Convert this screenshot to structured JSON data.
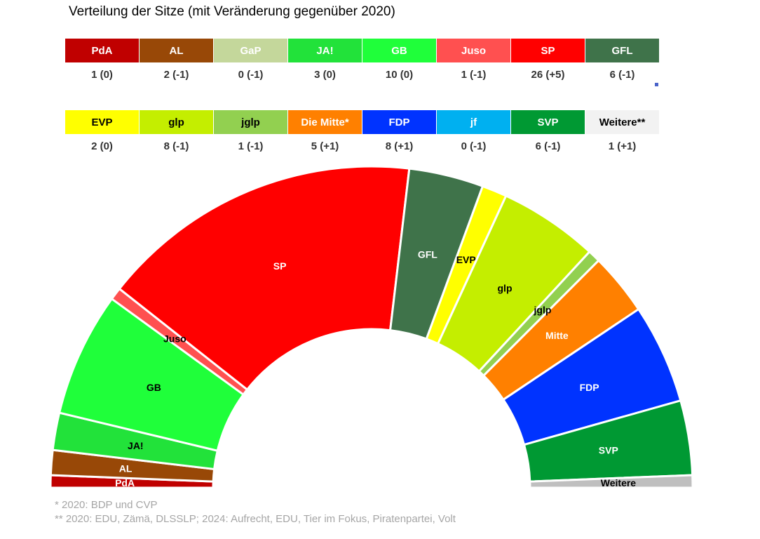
{
  "title": "Verteilung der Sitze (mit Veränderung gegenüber 2020)",
  "table_rows": [
    [
      {
        "party": "PdA",
        "value": "1 (0)",
        "color": "#C00000",
        "text_color": "#ffffff"
      },
      {
        "party": "AL",
        "value": "2 (-1)",
        "color": "#984807",
        "text_color": "#ffffff"
      },
      {
        "party": "GaP",
        "value": "0 (-1)",
        "color": "#C4D79B",
        "text_color": "#ffffff"
      },
      {
        "party": "JA!",
        "value": "3 (0)",
        "color": "#22E23A",
        "text_color": "#ffffff"
      },
      {
        "party": "GB",
        "value": "10 (0)",
        "color": "#1FFF3A",
        "text_color": "#ffffff"
      },
      {
        "party": "Juso",
        "value": "1 (-1)",
        "color": "#FF5050",
        "text_color": "#ffffff"
      },
      {
        "party": "SP",
        "value": "26 (+5)",
        "color": "#FF0000",
        "text_color": "#ffffff"
      },
      {
        "party": "GFL",
        "value": "6 (-1)",
        "color": "#3F734A",
        "text_color": "#ffffff"
      }
    ],
    [
      {
        "party": "EVP",
        "value": "2 (0)",
        "color": "#FFFF00",
        "text_color": "#000000"
      },
      {
        "party": "glp",
        "value": "8 (-1)",
        "color": "#C4EE00",
        "text_color": "#000000"
      },
      {
        "party": "jglp",
        "value": "1 (-1)",
        "color": "#92D050",
        "text_color": "#000000"
      },
      {
        "party": "Die Mitte*",
        "value": "5 (+1)",
        "color": "#FF8000",
        "text_color": "#ffffff"
      },
      {
        "party": "FDP",
        "value": "8 (+1)",
        "color": "#0033FF",
        "text_color": "#ffffff"
      },
      {
        "party": "jf",
        "value": "0 (-1)",
        "color": "#00B0F0",
        "text_color": "#ffffff"
      },
      {
        "party": "SVP",
        "value": "6 (-1)",
        "color": "#009933",
        "text_color": "#ffffff"
      },
      {
        "party": "Weitere**",
        "value": "1 (+1)",
        "color": "#F2F2F2",
        "text_color": "#000000"
      }
    ]
  ],
  "chart_data": {
    "type": "pie",
    "variant": "half-donut parliament",
    "total": 80,
    "slices": [
      {
        "label": "PdA",
        "value": 1,
        "color": "#C00000",
        "label_color": "#ffffff"
      },
      {
        "label": "AL",
        "value": 2,
        "color": "#984807",
        "label_color": "#ffffff"
      },
      {
        "label": "JA!",
        "value": 3,
        "color": "#22E23A",
        "label_color": "#000000"
      },
      {
        "label": "GB",
        "value": 10,
        "color": "#1FFF3A",
        "label_color": "#000000"
      },
      {
        "label": "Juso",
        "value": 1,
        "color": "#FF5050",
        "label_color": "#000000"
      },
      {
        "label": "SP",
        "value": 26,
        "color": "#FF0000",
        "label_color": "#ffffff"
      },
      {
        "label": "GFL",
        "value": 6,
        "color": "#3F734A",
        "label_color": "#ffffff"
      },
      {
        "label": "EVP",
        "value": 2,
        "color": "#FFFF00",
        "label_color": "#000000"
      },
      {
        "label": "glp",
        "value": 8,
        "color": "#C4EE00",
        "label_color": "#000000"
      },
      {
        "label": "jglp",
        "value": 1,
        "color": "#92D050",
        "label_color": "#000000"
      },
      {
        "label": "Mitte",
        "value": 5,
        "color": "#FF8000",
        "label_color": "#ffffff"
      },
      {
        "label": "FDP",
        "value": 8,
        "color": "#0033FF",
        "label_color": "#ffffff"
      },
      {
        "label": "SVP",
        "value": 6,
        "color": "#009933",
        "label_color": "#ffffff"
      },
      {
        "label": "Weitere",
        "value": 1,
        "color": "#BFBFBF",
        "label_color": "#000000"
      }
    ]
  },
  "footnotes": [
    "*   2020: BDP und CVP",
    "** 2020: EDU, Zämä, DLSSLP; 2024: Aufrecht, EDU, Tier im Fokus, Piratenpartei, Volt"
  ]
}
